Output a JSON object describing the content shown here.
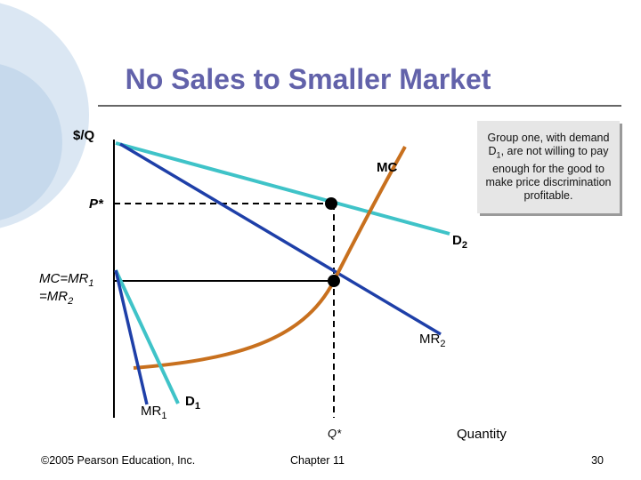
{
  "header": {
    "title": "No Sales to Smaller Market"
  },
  "diagram": {
    "y_axis_label": "$/Q",
    "x_axis_label": "Quantity",
    "mc_label": "MC",
    "p_star": "P*",
    "q_star": "Q*",
    "d2": {
      "text": "D",
      "sub": "2"
    },
    "mr2": {
      "text": "MR",
      "sub": "2"
    },
    "d1": {
      "text": "D",
      "sub": "1"
    },
    "mr1": {
      "text": "MR",
      "sub": "1"
    },
    "mc_mr": {
      "line1": "MC=MR",
      "sub1": "1",
      "line2": "=MR",
      "sub2": "2"
    },
    "callout": {
      "before": "Group one, with demand D",
      "sub": "1",
      "after": ", are not willing to pay enough for the good to make price discrimination profitable."
    }
  },
  "footer": {
    "copyright": "©2005 Pearson Education, Inc.",
    "chapter": "Chapter 11",
    "page": "30"
  }
}
